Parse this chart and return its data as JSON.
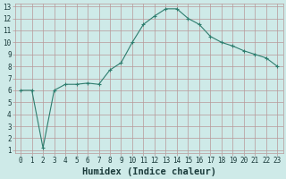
{
  "x": [
    0,
    1,
    2,
    3,
    4,
    5,
    6,
    7,
    8,
    9,
    10,
    11,
    12,
    13,
    14,
    15,
    16,
    17,
    18,
    19,
    20,
    21,
    22,
    23
  ],
  "y": [
    6.0,
    6.0,
    1.2,
    6.0,
    6.5,
    6.5,
    6.6,
    6.5,
    7.7,
    8.3,
    10.0,
    11.5,
    12.2,
    12.8,
    12.8,
    12.0,
    11.5,
    10.5,
    10.0,
    9.7,
    9.3,
    9.0,
    8.7,
    8.0
  ],
  "line_color": "#2e7d6e",
  "marker": "+",
  "marker_size": 3,
  "marker_linewidth": 0.8,
  "line_width": 0.8,
  "bg_color": "#ceeae8",
  "grid_color": "#b89898",
  "xlabel": "Humidex (Indice chaleur)",
  "xlim_min": -0.5,
  "xlim_max": 23.5,
  "ylim_min": 0.8,
  "ylim_max": 13.2,
  "xticks": [
    0,
    1,
    2,
    3,
    4,
    5,
    6,
    7,
    8,
    9,
    10,
    11,
    12,
    13,
    14,
    15,
    16,
    17,
    18,
    19,
    20,
    21,
    22,
    23
  ],
  "yticks": [
    1,
    2,
    3,
    4,
    5,
    6,
    7,
    8,
    9,
    10,
    11,
    12,
    13
  ],
  "tick_fontsize": 5.5,
  "xlabel_fontsize": 7.5
}
